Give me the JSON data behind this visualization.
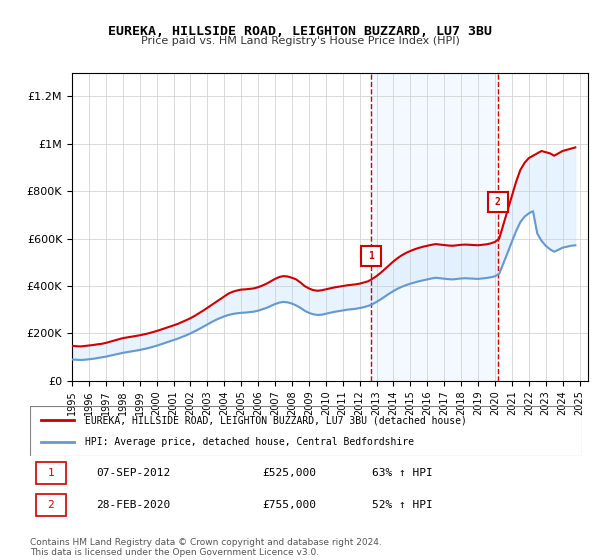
{
  "title": "EUREKA, HILLSIDE ROAD, LEIGHTON BUZZARD, LU7 3BU",
  "subtitle": "Price paid vs. HM Land Registry's House Price Index (HPI)",
  "xlabel": "",
  "ylabel": "",
  "ylim": [
    0,
    1300000
  ],
  "xlim_start": 1995.0,
  "xlim_end": 2025.5,
  "yticks": [
    0,
    200000,
    400000,
    600000,
    800000,
    1000000,
    1200000
  ],
  "ytick_labels": [
    "£0",
    "£200K",
    "£400K",
    "£600K",
    "£800K",
    "£1M",
    "£1.2M"
  ],
  "xticks": [
    1995,
    1996,
    1997,
    1998,
    1999,
    2000,
    2001,
    2002,
    2003,
    2004,
    2005,
    2006,
    2007,
    2008,
    2009,
    2010,
    2011,
    2012,
    2013,
    2014,
    2015,
    2016,
    2017,
    2018,
    2019,
    2020,
    2021,
    2022,
    2023,
    2024,
    2025
  ],
  "transaction1_x": 2012.67,
  "transaction1_y": 525000,
  "transaction1_label": "1",
  "transaction2_x": 2020.17,
  "transaction2_y": 755000,
  "transaction2_label": "2",
  "red_line_color": "#CC0000",
  "blue_line_color": "#6699CC",
  "shade_color": "#DDEEFF",
  "vline_color": "#CC0000",
  "marker_box_color": "#CC0000",
  "background_color": "#FFFFFF",
  "grid_color": "#CCCCCC",
  "legend_line1": "EUREKA, HILLSIDE ROAD, LEIGHTON BUZZARD, LU7 3BU (detached house)",
  "legend_line2": "HPI: Average price, detached house, Central Bedfordshire",
  "table_row1": [
    "1",
    "07-SEP-2012",
    "£525,000",
    "63% ↑ HPI"
  ],
  "table_row2": [
    "2",
    "28-FEB-2020",
    "£755,000",
    "52% ↑ HPI"
  ],
  "footnote": "Contains HM Land Registry data © Crown copyright and database right 2024.\nThis data is licensed under the Open Government Licence v3.0.",
  "red_years": [
    1995.0,
    1995.25,
    1995.5,
    1995.75,
    1996.0,
    1996.25,
    1996.5,
    1996.75,
    1997.0,
    1997.25,
    1997.5,
    1997.75,
    1998.0,
    1998.25,
    1998.5,
    1998.75,
    1999.0,
    1999.25,
    1999.5,
    1999.75,
    2000.0,
    2000.25,
    2000.5,
    2000.75,
    2001.0,
    2001.25,
    2001.5,
    2001.75,
    2002.0,
    2002.25,
    2002.5,
    2002.75,
    2003.0,
    2003.25,
    2003.5,
    2003.75,
    2004.0,
    2004.25,
    2004.5,
    2004.75,
    2005.0,
    2005.25,
    2005.5,
    2005.75,
    2006.0,
    2006.25,
    2006.5,
    2006.75,
    2007.0,
    2007.25,
    2007.5,
    2007.75,
    2008.0,
    2008.25,
    2008.5,
    2008.75,
    2009.0,
    2009.25,
    2009.5,
    2009.75,
    2010.0,
    2010.25,
    2010.5,
    2010.75,
    2011.0,
    2011.25,
    2011.5,
    2011.75,
    2012.0,
    2012.25,
    2012.5,
    2012.75,
    2013.0,
    2013.25,
    2013.5,
    2013.75,
    2014.0,
    2014.25,
    2014.5,
    2014.75,
    2015.0,
    2015.25,
    2015.5,
    2015.75,
    2016.0,
    2016.25,
    2016.5,
    2016.75,
    2017.0,
    2017.25,
    2017.5,
    2017.75,
    2018.0,
    2018.25,
    2018.5,
    2018.75,
    2019.0,
    2019.25,
    2019.5,
    2019.75,
    2020.0,
    2020.25,
    2020.5,
    2020.75,
    2021.0,
    2021.25,
    2021.5,
    2021.75,
    2022.0,
    2022.25,
    2022.5,
    2022.75,
    2023.0,
    2023.25,
    2023.5,
    2023.75,
    2024.0,
    2024.25,
    2024.5,
    2024.75
  ],
  "red_values": [
    148000,
    146000,
    145000,
    147000,
    149000,
    151000,
    154000,
    156000,
    160000,
    165000,
    170000,
    175000,
    180000,
    183000,
    186000,
    189000,
    192000,
    196000,
    200000,
    205000,
    210000,
    216000,
    222000,
    228000,
    234000,
    240000,
    248000,
    256000,
    264000,
    274000,
    285000,
    296000,
    308000,
    320000,
    332000,
    344000,
    356000,
    368000,
    376000,
    381000,
    385000,
    386000,
    388000,
    390000,
    395000,
    402000,
    410000,
    420000,
    430000,
    438000,
    442000,
    440000,
    435000,
    428000,
    415000,
    400000,
    390000,
    383000,
    380000,
    382000,
    386000,
    390000,
    394000,
    397000,
    400000,
    403000,
    405000,
    407000,
    410000,
    415000,
    420000,
    430000,
    442000,
    456000,
    472000,
    488000,
    504000,
    518000,
    530000,
    540000,
    548000,
    555000,
    561000,
    566000,
    570000,
    574000,
    577000,
    575000,
    573000,
    571000,
    570000,
    572000,
    574000,
    575000,
    574000,
    573000,
    572000,
    574000,
    576000,
    580000,
    586000,
    600000,
    660000,
    720000,
    780000,
    840000,
    890000,
    920000,
    940000,
    950000,
    960000,
    970000,
    965000,
    960000,
    950000,
    960000,
    970000,
    975000,
    980000,
    985000
  ],
  "blue_years": [
    1995.0,
    1995.25,
    1995.5,
    1995.75,
    1996.0,
    1996.25,
    1996.5,
    1996.75,
    1997.0,
    1997.25,
    1997.5,
    1997.75,
    1998.0,
    1998.25,
    1998.5,
    1998.75,
    1999.0,
    1999.25,
    1999.5,
    1999.75,
    2000.0,
    2000.25,
    2000.5,
    2000.75,
    2001.0,
    2001.25,
    2001.5,
    2001.75,
    2002.0,
    2002.25,
    2002.5,
    2002.75,
    2003.0,
    2003.25,
    2003.5,
    2003.75,
    2004.0,
    2004.25,
    2004.5,
    2004.75,
    2005.0,
    2005.25,
    2005.5,
    2005.75,
    2006.0,
    2006.25,
    2006.5,
    2006.75,
    2007.0,
    2007.25,
    2007.5,
    2007.75,
    2008.0,
    2008.25,
    2008.5,
    2008.75,
    2009.0,
    2009.25,
    2009.5,
    2009.75,
    2010.0,
    2010.25,
    2010.5,
    2010.75,
    2011.0,
    2011.25,
    2011.5,
    2011.75,
    2012.0,
    2012.25,
    2012.5,
    2012.75,
    2013.0,
    2013.25,
    2013.5,
    2013.75,
    2014.0,
    2014.25,
    2014.5,
    2014.75,
    2015.0,
    2015.25,
    2015.5,
    2015.75,
    2016.0,
    2016.25,
    2016.5,
    2016.75,
    2017.0,
    2017.25,
    2017.5,
    2017.75,
    2018.0,
    2018.25,
    2018.5,
    2018.75,
    2019.0,
    2019.25,
    2019.5,
    2019.75,
    2020.0,
    2020.25,
    2020.5,
    2020.75,
    2021.0,
    2021.25,
    2021.5,
    2021.75,
    2022.0,
    2022.25,
    2022.5,
    2022.75,
    2023.0,
    2023.25,
    2023.5,
    2023.75,
    2024.0,
    2024.25,
    2024.5,
    2024.75
  ],
  "blue_values": [
    90000,
    89000,
    88000,
    89000,
    91000,
    93000,
    96000,
    99000,
    102000,
    106000,
    110000,
    114000,
    118000,
    121000,
    124000,
    127000,
    130000,
    134000,
    138000,
    143000,
    148000,
    154000,
    160000,
    166000,
    172000,
    178000,
    185000,
    192000,
    200000,
    209000,
    218000,
    228000,
    238000,
    248000,
    257000,
    265000,
    272000,
    278000,
    282000,
    285000,
    287000,
    288000,
    290000,
    292000,
    296000,
    302000,
    308000,
    316000,
    324000,
    330000,
    333000,
    331000,
    326000,
    318000,
    308000,
    296000,
    287000,
    281000,
    278000,
    279000,
    283000,
    287000,
    291000,
    294000,
    297000,
    300000,
    302000,
    304000,
    307000,
    311000,
    316000,
    323000,
    333000,
    344000,
    356000,
    368000,
    379000,
    389000,
    397000,
    404000,
    410000,
    415000,
    420000,
    424000,
    428000,
    432000,
    435000,
    433000,
    431000,
    429000,
    428000,
    430000,
    432000,
    433000,
    432000,
    431000,
    430000,
    432000,
    434000,
    437000,
    441000,
    452000,
    496000,
    541000,
    587000,
    632000,
    670000,
    693000,
    707000,
    716000,
    622000,
    591000,
    570000,
    555000,
    545000,
    553000,
    562000,
    566000,
    570000,
    572000
  ]
}
